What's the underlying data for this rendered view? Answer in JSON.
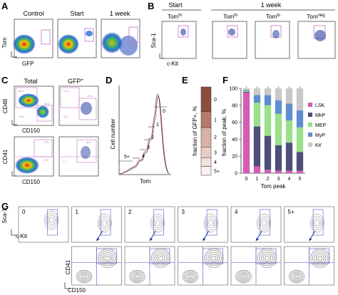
{
  "panels": {
    "A": {
      "label": "A",
      "titles": [
        "Control",
        "Start",
        "1 week"
      ],
      "ylabel": "Tom",
      "xlabel": "GFP"
    },
    "B": {
      "label": "B",
      "group_start": "Start",
      "group_week": "1 week",
      "titles": [
        {
          "base": "Tom",
          "sup": "hi"
        },
        {
          "base": "Tom",
          "sup": "hi"
        },
        {
          "base": "Tom",
          "sup": "lo"
        },
        {
          "base": "Tom",
          "sup": "neg"
        }
      ],
      "ylabel": "Sca-1",
      "xlabel": "c-Kit"
    },
    "C": {
      "label": "C",
      "title_total": "Total",
      "title_gfp": {
        "base": "GFP",
        "sup": "+"
      },
      "ylabel_top": "CD48",
      "xlabel_top": "CD150",
      "ylabel_bottom": "CD41",
      "xlabel_bottom": "CD150",
      "gate_numbers_top": [
        "81.2",
        "12.5",
        "80.0",
        "17.6",
        "6.4",
        "76.4"
      ],
      "gate_numbers_bottom": [
        "7.73",
        "4.73",
        "7.3",
        "86.7"
      ]
    },
    "D": {
      "label": "D",
      "ylabel": "Cell number",
      "xlabel": "Tom",
      "peak_labels": [
        "0",
        "1",
        "2",
        "3",
        "4",
        "5+"
      ]
    },
    "E": {
      "label": "E",
      "ylabel": "fraction of GFP+, %",
      "segment_labels": [
        "0",
        "1",
        "2",
        "3",
        "4",
        "5+"
      ],
      "segments": [
        {
          "label": "0",
          "value": 28,
          "color": "#8c4e3b"
        },
        {
          "label": "1",
          "value": 18,
          "color": "#b5786a"
        },
        {
          "label": "2",
          "value": 22,
          "color": "#d9b1a6"
        },
        {
          "label": "3",
          "value": 12,
          "color": "#e8cdc6"
        },
        {
          "label": "4",
          "value": 10,
          "color": "#f1e1dc"
        },
        {
          "label": "5+",
          "value": 10,
          "color": "#faf2ef"
        }
      ]
    },
    "F": {
      "label": "F",
      "ylabel": "fraction of peak, %",
      "xlabel": "Tom peak",
      "legend": [
        {
          "name": "LSK",
          "color": "#d65bb6"
        },
        {
          "name": "MkP",
          "color": "#4b4f7a"
        },
        {
          "name": "MEP",
          "color": "#98e08a"
        },
        {
          "name": "MyP",
          "color": "#5d8fd0"
        },
        {
          "name": "Kit",
          "sup": "-",
          "color": "#c8c8c8"
        }
      ]
    },
    "G": {
      "label": "G",
      "titles": [
        "0",
        "1",
        "2",
        "3",
        "4",
        "5+"
      ],
      "ylabel_top": "Sca-1",
      "xlabel_top": "c-Kit",
      "ylabel_bottom": "CD41",
      "xlabel_bottom": "CD150"
    }
  },
  "chart_data": [
    {
      "type": "bar",
      "panel": "F",
      "categories": [
        "0",
        "1",
        "2",
        "3",
        "4",
        "5"
      ],
      "xlabel": "Tom peak",
      "ylabel": "fraction of peak, %",
      "ylim": [
        0,
        100
      ],
      "yticks": [
        0,
        20,
        40,
        60,
        80,
        100
      ],
      "stacked": true,
      "series": [
        {
          "name": "LSK",
          "color": "#d65bb6",
          "values": [
            95,
            8,
            4,
            3,
            3,
            3
          ]
        },
        {
          "name": "MkP",
          "color": "#4b4f7a",
          "values": [
            1,
            47,
            40,
            30,
            33,
            22
          ]
        },
        {
          "name": "MEP",
          "color": "#98e08a",
          "values": [
            1,
            28,
            36,
            37,
            26,
            29
          ]
        },
        {
          "name": "MyP",
          "color": "#5d8fd0",
          "values": [
            1,
            9,
            12,
            16,
            20,
            20
          ]
        },
        {
          "name": "Kit-",
          "color": "#c8c8c8",
          "values": [
            2,
            8,
            8,
            14,
            18,
            26
          ]
        }
      ]
    },
    {
      "type": "bar",
      "panel": "E",
      "ylabel": "fraction of GFP+, %",
      "stacked": true,
      "categories": [
        "GFP+"
      ],
      "series": [
        {
          "name": "0",
          "values": [
            28
          ]
        },
        {
          "name": "1",
          "values": [
            18
          ]
        },
        {
          "name": "2",
          "values": [
            22
          ]
        },
        {
          "name": "3",
          "values": [
            12
          ]
        },
        {
          "name": "4",
          "values": [
            10
          ]
        },
        {
          "name": "5+",
          "values": [
            10
          ]
        }
      ]
    }
  ]
}
